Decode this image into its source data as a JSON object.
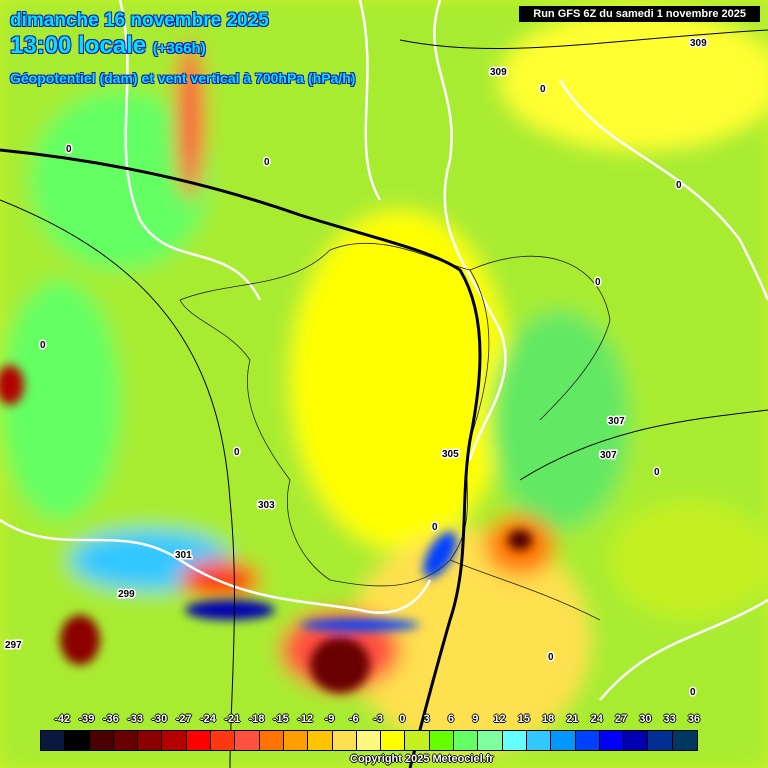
{
  "header": {
    "date": "dimanche 16 novembre 2025",
    "time": "13:00 locale",
    "lead": "(+366h)",
    "parameter": "Géopotentiel (dam) et vent vertical à 700hPa (hPa/h)",
    "run": "Run GFS 6Z du samedi 1 novembre 2025"
  },
  "legend": {
    "labels": [
      "-42",
      "-39",
      "-36",
      "-33",
      "-30",
      "-27",
      "-24",
      "-21",
      "-18",
      "-15",
      "-12",
      "-9",
      "-6",
      "-3",
      "0",
      "3",
      "6",
      "9",
      "12",
      "15",
      "18",
      "21",
      "24",
      "27",
      "30",
      "33",
      "36"
    ],
    "colors": [
      "#0a1840",
      "#000000",
      "#4a0000",
      "#680000",
      "#8c0000",
      "#b40000",
      "#ff0000",
      "#ff3810",
      "#ff5040",
      "#ff7400",
      "#ff9c00",
      "#ffc400",
      "#ffe050",
      "#fff880",
      "#ffff00",
      "#c4f020",
      "#64ff00",
      "#64ff64",
      "#80ffa0",
      "#64ffff",
      "#30c8ff",
      "#0098ff",
      "#0040ff",
      "#0000ff",
      "#0000b0",
      "#003094",
      "#003860"
    ]
  },
  "contours": {
    "geopotential_labels": [
      "309",
      "309",
      "307",
      "307",
      "305",
      "303",
      "301",
      "299",
      "297"
    ],
    "zero_label": "0"
  },
  "copyright": "Copyright 2025 Meteociel.fr"
}
